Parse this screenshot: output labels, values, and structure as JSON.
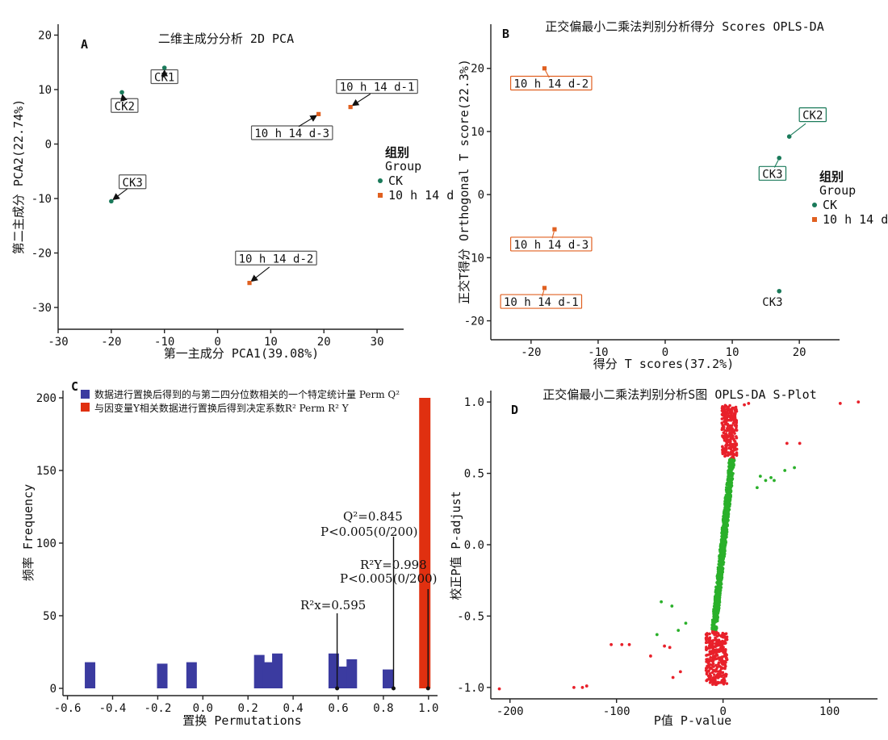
{
  "colors": {
    "ck": "#1a7a5a",
    "trt": "#e06020",
    "perm_q": "#3b3ba0",
    "perm_r": "#e03010",
    "s_red": "#e8202a",
    "s_green": "#2ab02a"
  },
  "chart_data": [
    {
      "panel": "A",
      "type": "scatter",
      "title": "二维主成分分析 2D PCA",
      "xlabel": "第一主成分 PCA1(39.08%)",
      "ylabel": "第二主成分 PCA2(22.74%)",
      "xlim": [
        -30,
        35
      ],
      "ylim": [
        -34,
        22
      ],
      "xticks": [
        -30,
        -20,
        -10,
        0,
        10,
        20,
        30
      ],
      "yticks": [
        20,
        10,
        0,
        -10,
        -20,
        -30
      ],
      "legend": {
        "title1": "组别",
        "title2": "Group",
        "entries": [
          "CK",
          "10 h 14 d"
        ]
      },
      "points": [
        {
          "label": "CK1",
          "group": "CK",
          "x": -10,
          "y": 14,
          "lx": -10,
          "ly": 12.3
        },
        {
          "label": "CK2",
          "group": "CK",
          "x": -18,
          "y": 9.5,
          "lx": -17.5,
          "ly": 7
        },
        {
          "label": "CK3",
          "group": "CK",
          "x": -20,
          "y": -10.5,
          "lx": -16,
          "ly": -7
        },
        {
          "label": "10 h 14 d-1",
          "group": "10 h 14 d",
          "x": 25,
          "y": 6.8,
          "lx": 30,
          "ly": 10.5
        },
        {
          "label": "10 h 14 d-2",
          "group": "10 h 14 d",
          "x": 6,
          "y": -25.5,
          "lx": 11,
          "ly": -21
        },
        {
          "label": "10 h 14 d-3",
          "group": "10 h 14 d",
          "x": 19,
          "y": 5.5,
          "lx": 14,
          "ly": 2
        }
      ]
    },
    {
      "panel": "B",
      "type": "scatter",
      "title": "正交偏最小二乘法判别分析得分 Scores OPLS-DA",
      "xlabel": "得分 T scores(37.2%)",
      "ylabel": "正交T得分 Orthogonal T score(22.3%)",
      "xlim": [
        -26,
        26
      ],
      "ylim": [
        -23,
        27
      ],
      "xticks": [
        -20,
        -10,
        0,
        10,
        20
      ],
      "yticks": [
        20,
        10,
        0,
        -10,
        -20
      ],
      "legend": {
        "title1": "组别",
        "title2": "Group",
        "entries": [
          "CK",
          "10 h 14 d"
        ]
      },
      "points": [
        {
          "label": "CK2",
          "group": "CK",
          "x": 18.5,
          "y": 9.2,
          "lx": 22,
          "ly": 12.6,
          "boxed": true
        },
        {
          "label": "CK3",
          "group": "CK",
          "x": 17,
          "y": 5.8,
          "lx": 16,
          "ly": 3.3,
          "boxed": true
        },
        {
          "label": "CK3",
          "group": "CK",
          "x": 17,
          "y": -15.3,
          "lx": 16,
          "ly": -17,
          "boxed": false
        },
        {
          "label": "10 h 14 d-2",
          "group": "10 h 14 d",
          "x": -18,
          "y": 20,
          "lx": -17,
          "ly": 17.6,
          "boxed": true
        },
        {
          "label": "10 h 14 d-3",
          "group": "10 h 14 d",
          "x": -16.5,
          "y": -5.5,
          "lx": -17,
          "ly": -7.9,
          "boxed": true
        },
        {
          "label": "10 h 14 d-1",
          "group": "10 h 14 d",
          "x": -18,
          "y": -14.8,
          "lx": -18.5,
          "ly": -17,
          "boxed": true
        }
      ]
    },
    {
      "panel": "C",
      "type": "bar",
      "xlabel": "置换 Permutations",
      "ylabel": "频率 Frequency",
      "xlim": [
        -0.62,
        1.04
      ],
      "ylim": [
        -5,
        205
      ],
      "xticks": [
        -0.6,
        -0.4,
        -0.2,
        0.0,
        0.2,
        0.4,
        0.6,
        0.8,
        1.0
      ],
      "yticks": [
        0,
        50,
        100,
        150,
        200
      ],
      "legend": [
        "数据进行置换后得到的与第二四分位数相关的一个特定统计量 Perm Q²",
        "与因变量Y相关数据进行置换后得到决定系数R² Perm R² Y"
      ],
      "series": [
        {
          "name": "Perm Q²",
          "bars": [
            {
              "x": -0.5,
              "v": 18
            },
            {
              "x": -0.18,
              "v": 17
            },
            {
              "x": -0.05,
              "v": 18
            },
            {
              "x": 0.25,
              "v": 23
            },
            {
              "x": 0.29,
              "v": 18
            },
            {
              "x": 0.33,
              "v": 24
            },
            {
              "x": 0.58,
              "v": 24
            },
            {
              "x": 0.62,
              "v": 15
            },
            {
              "x": 0.66,
              "v": 20
            },
            {
              "x": 0.82,
              "v": 13
            }
          ]
        },
        {
          "name": "Perm R² Y",
          "bars": [
            {
              "x": 0.98,
              "v": 200
            }
          ]
        }
      ],
      "annotations": [
        {
          "text": "R²x=0.595",
          "x": 0.595
        },
        {
          "text1": "Q²=0.845",
          "text2": "P<0.005(0/200)",
          "x": 0.845
        },
        {
          "text1": "R²Y=0.998",
          "text2": "P<0.005(0/200)",
          "x": 0.998
        }
      ]
    },
    {
      "panel": "D",
      "type": "scatter",
      "title": "正交偏最小二乘法判别分析S图 OPLS-DA S-Plot",
      "xlabel": "P值 P-value",
      "ylabel": "校正P值 P-adjust",
      "xlim": [
        -218,
        145
      ],
      "ylim": [
        -1.08,
        1.08
      ],
      "xticks": [
        -200,
        -100,
        0,
        100
      ],
      "yticks": [
        1.0,
        0.5,
        0.0,
        -0.5,
        -1.0
      ],
      "outliers": [
        {
          "x": -210,
          "y": -1.01,
          "c": "r"
        },
        {
          "x": -140,
          "y": -1.0,
          "c": "r"
        },
        {
          "x": -132,
          "y": -1.0,
          "c": "r"
        },
        {
          "x": -128,
          "y": -0.99,
          "c": "r"
        },
        {
          "x": -105,
          "y": -0.7,
          "c": "r"
        },
        {
          "x": -95,
          "y": -0.7,
          "c": "r"
        },
        {
          "x": -88,
          "y": -0.7,
          "c": "r"
        },
        {
          "x": -68,
          "y": -0.78,
          "c": "r"
        },
        {
          "x": -55,
          "y": -0.71,
          "c": "r"
        },
        {
          "x": -50,
          "y": -0.72,
          "c": "r"
        },
        {
          "x": -47,
          "y": -0.93,
          "c": "r"
        },
        {
          "x": -40,
          "y": -0.89,
          "c": "r"
        },
        {
          "x": -58,
          "y": -0.4,
          "c": "g"
        },
        {
          "x": -48,
          "y": -0.43,
          "c": "g"
        },
        {
          "x": -42,
          "y": -0.6,
          "c": "g"
        },
        {
          "x": -62,
          "y": -0.63,
          "c": "g"
        },
        {
          "x": -35,
          "y": -0.55,
          "c": "g"
        },
        {
          "x": 20,
          "y": 0.98,
          "c": "r"
        },
        {
          "x": 24,
          "y": 0.99,
          "c": "r"
        },
        {
          "x": 110,
          "y": 0.99,
          "c": "r"
        },
        {
          "x": 127,
          "y": 1.0,
          "c": "r"
        },
        {
          "x": 60,
          "y": 0.71,
          "c": "r"
        },
        {
          "x": 72,
          "y": 0.71,
          "c": "r"
        },
        {
          "x": 35,
          "y": 0.48,
          "c": "g"
        },
        {
          "x": 40,
          "y": 0.45,
          "c": "g"
        },
        {
          "x": 45,
          "y": 0.47,
          "c": "g"
        },
        {
          "x": 48,
          "y": 0.45,
          "c": "g"
        },
        {
          "x": 58,
          "y": 0.52,
          "c": "g"
        },
        {
          "x": 67,
          "y": 0.54,
          "c": "g"
        },
        {
          "x": 32,
          "y": 0.4,
          "c": "g"
        }
      ]
    }
  ]
}
